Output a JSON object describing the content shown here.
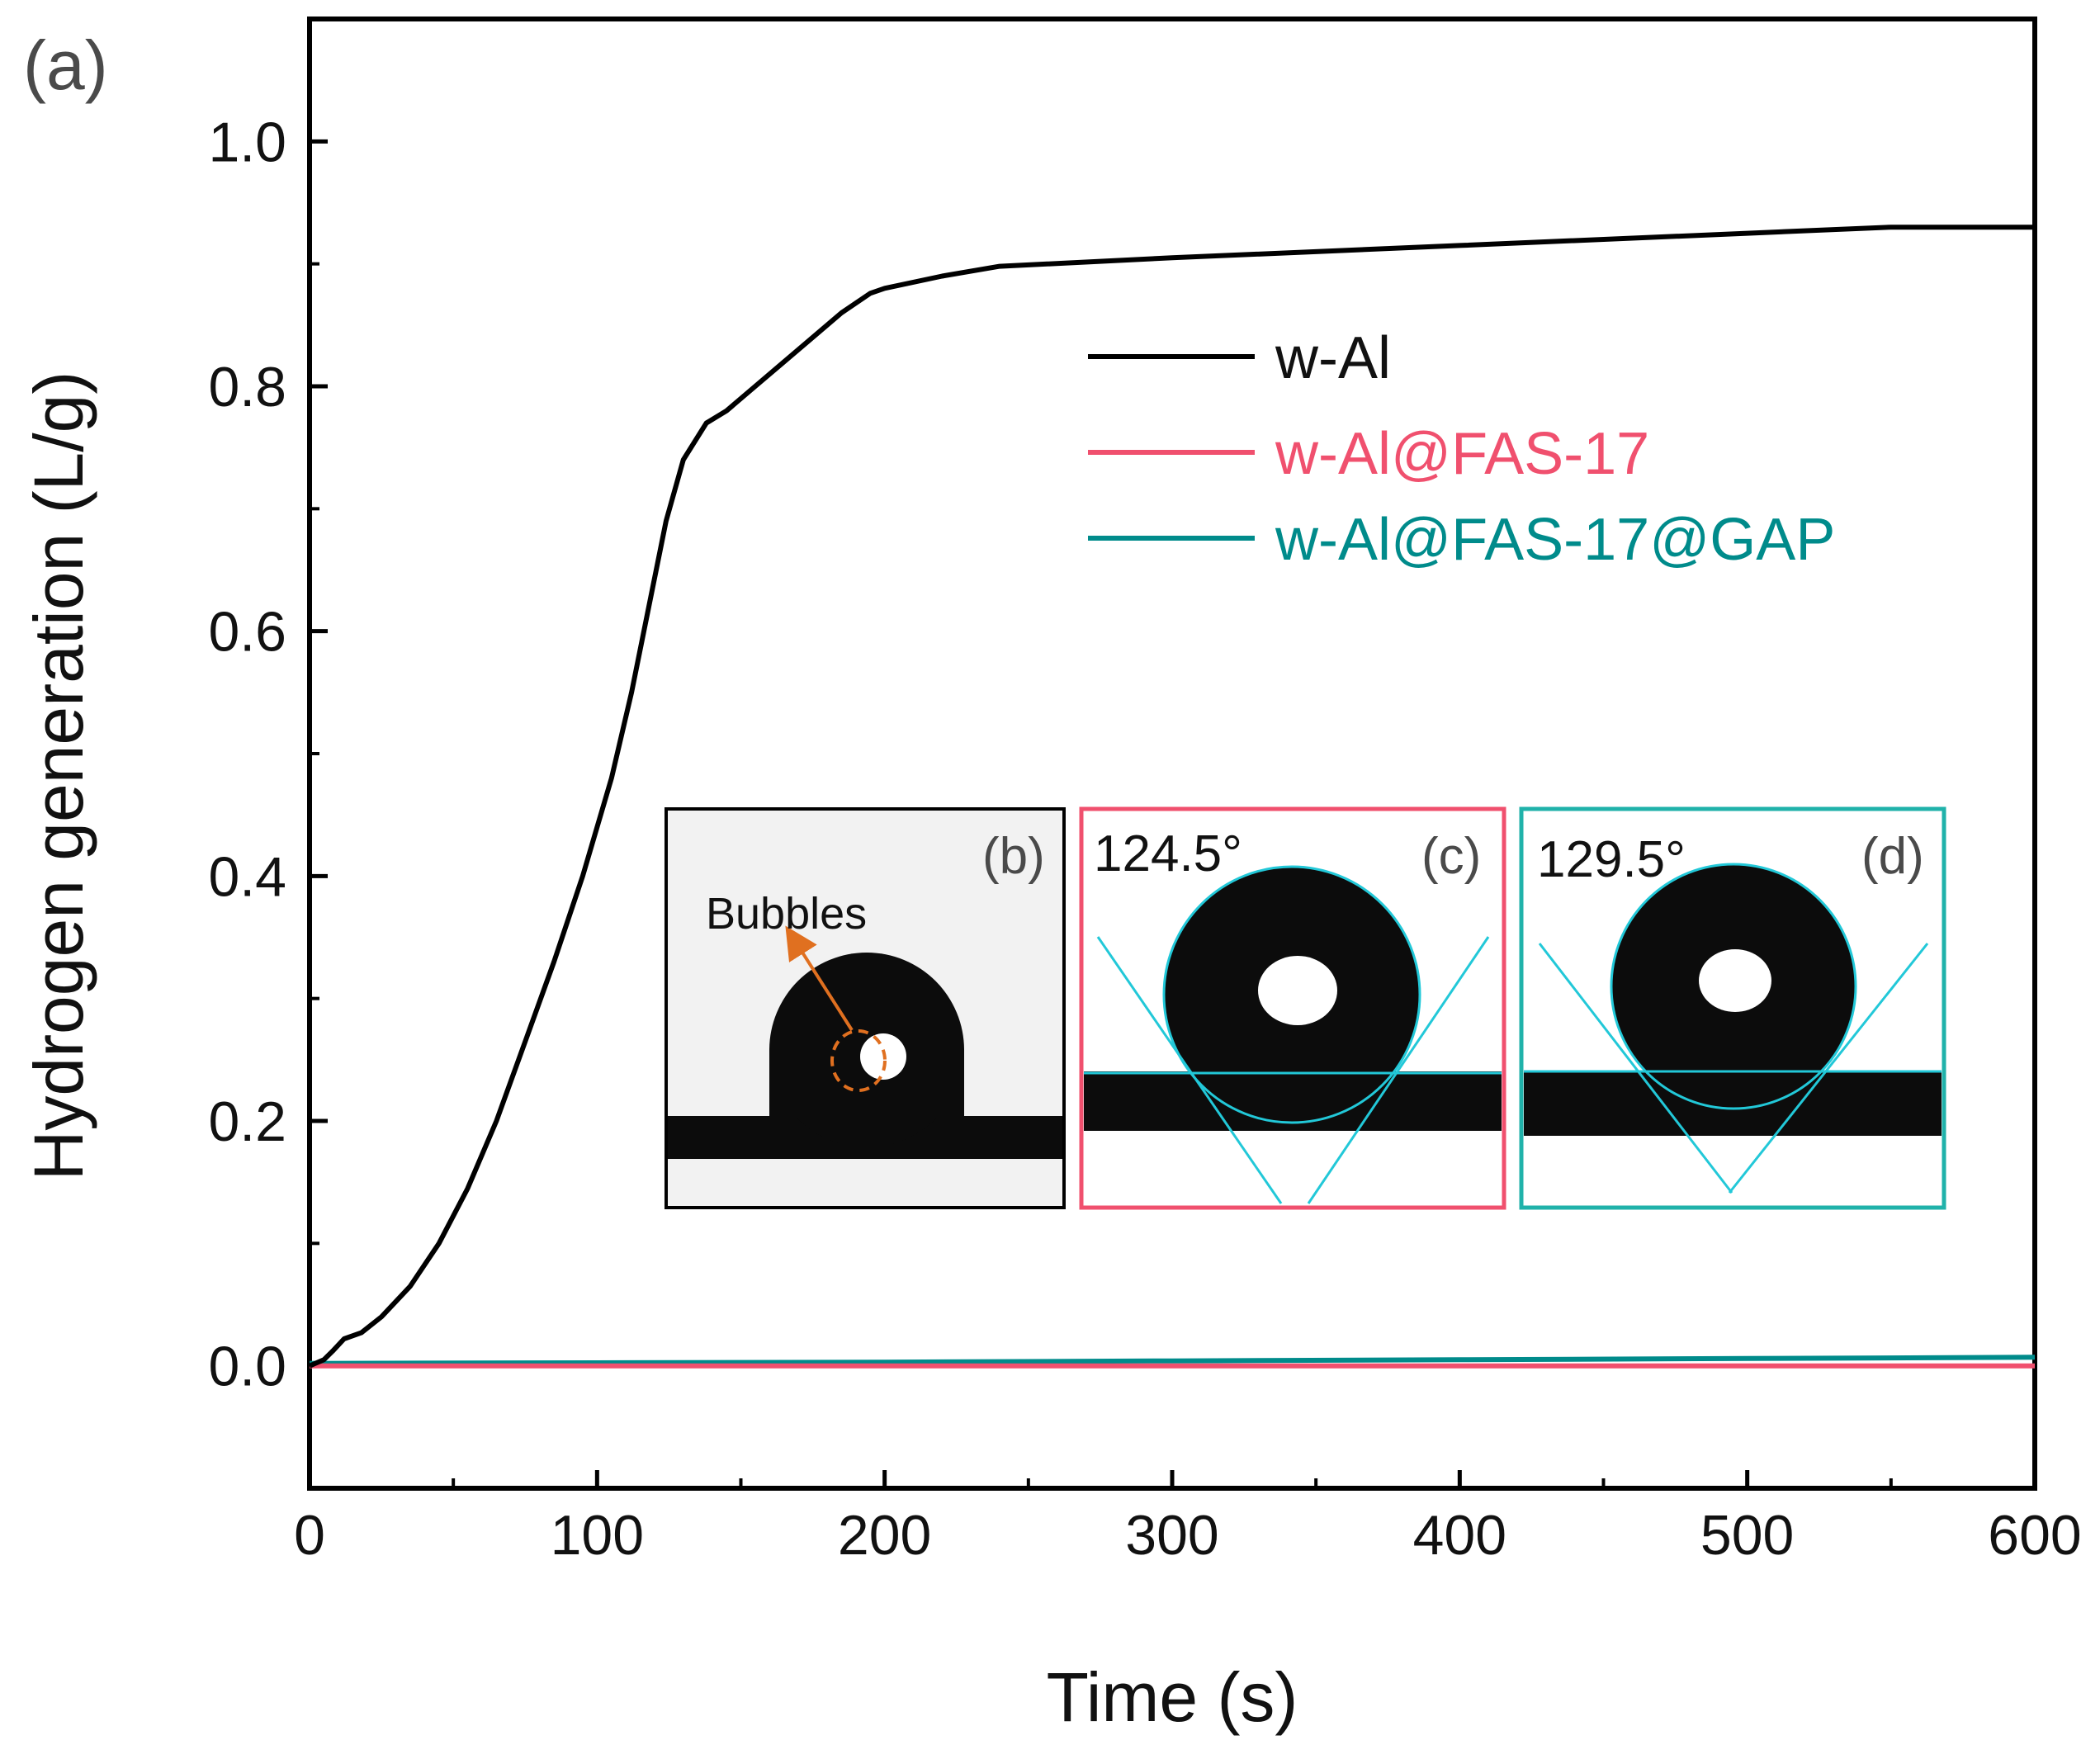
{
  "chart_data": {
    "type": "line",
    "panel_label": "(a)",
    "xlabel": "Time (s)",
    "ylabel": "Hydrogen generation (L/g)",
    "xlim": [
      0,
      600
    ],
    "ylim": [
      -0.1,
      1.1
    ],
    "xticks": [
      0,
      100,
      200,
      300,
      400,
      500,
      600
    ],
    "xtick_labels": [
      "0",
      "100",
      "200",
      "300",
      "400",
      "500",
      "600"
    ],
    "yticks": [
      0.0,
      0.2,
      0.4,
      0.6,
      0.8,
      1.0
    ],
    "ytick_labels": [
      "0.0",
      "0.2",
      "0.4",
      "0.6",
      "0.8",
      "1.0"
    ],
    "legend_position": "upper-right",
    "series": [
      {
        "name": "w-Al",
        "color": "#000000",
        "x": [
          0,
          5,
          8,
          12,
          18,
          25,
          35,
          45,
          55,
          65,
          75,
          85,
          95,
          105,
          112,
          118,
          124,
          130,
          138,
          145,
          155,
          165,
          175,
          185,
          195,
          200,
          220,
          240,
          300,
          400,
          500,
          550,
          600
        ],
        "y": [
          0.0,
          0.005,
          0.012,
          0.022,
          0.027,
          0.04,
          0.065,
          0.1,
          0.145,
          0.2,
          0.265,
          0.33,
          0.4,
          0.48,
          0.55,
          0.62,
          0.69,
          0.74,
          0.77,
          0.78,
          0.8,
          0.82,
          0.84,
          0.86,
          0.876,
          0.88,
          0.89,
          0.898,
          0.905,
          0.915,
          0.925,
          0.93,
          0.93
        ]
      },
      {
        "name": "w-Al@FAS-17",
        "color": "#f0506e",
        "x": [
          0,
          600
        ],
        "y": [
          0.0,
          0.0
        ]
      },
      {
        "name": "w-Al@FAS-17@GAP",
        "color": "#008b8b",
        "x": [
          0,
          100,
          200,
          300,
          400,
          500,
          600
        ],
        "y": [
          0.002,
          0.0025,
          0.003,
          0.004,
          0.005,
          0.006,
          0.007
        ]
      }
    ],
    "insets": [
      {
        "label": "(b)",
        "border_color": "#000000",
        "annotation": "Bubbles",
        "angle": ""
      },
      {
        "label": "(c)",
        "border_color": "#f0506e",
        "annotation": "",
        "angle": "124.5°"
      },
      {
        "label": "(d)",
        "border_color": "#20b2aa",
        "annotation": "",
        "angle": "129.5°"
      }
    ]
  }
}
